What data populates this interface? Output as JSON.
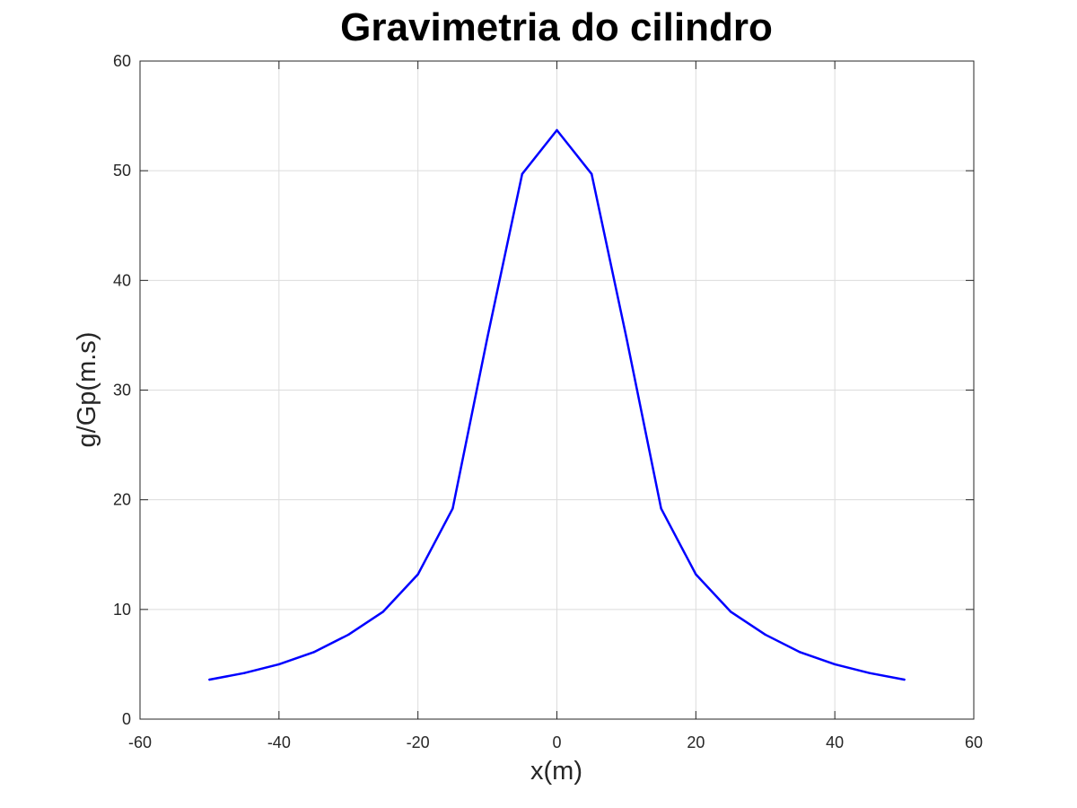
{
  "chart_data": {
    "type": "line",
    "title": "Gravimetria do cilindro",
    "xlabel": "x(m)",
    "ylabel": "g/Gp(m.s)",
    "xlim": [
      -60,
      60
    ],
    "ylim": [
      0,
      60
    ],
    "xticks": [
      -60,
      -40,
      -20,
      0,
      20,
      40,
      60
    ],
    "yticks": [
      0,
      10,
      20,
      30,
      40,
      50,
      60
    ],
    "xtick_labels": [
      "-60",
      "-40",
      "-20",
      "0",
      "20",
      "40",
      "60"
    ],
    "ytick_labels": [
      "0",
      "10",
      "20",
      "30",
      "40",
      "50",
      "60"
    ],
    "grid": true,
    "series": [
      {
        "color": "#0000ff",
        "x": [
          -50,
          -45,
          -40,
          -35,
          -30,
          -25,
          -20,
          -15,
          -10,
          -5,
          0,
          5,
          10,
          15,
          20,
          25,
          30,
          35,
          40,
          45,
          50
        ],
        "y": [
          3.6,
          4.2,
          5.0,
          6.1,
          7.7,
          9.8,
          13.2,
          19.2,
          34.8,
          49.7,
          53.7,
          49.7,
          34.8,
          19.2,
          13.2,
          9.8,
          7.7,
          6.1,
          5.0,
          4.2,
          3.6
        ]
      }
    ]
  }
}
